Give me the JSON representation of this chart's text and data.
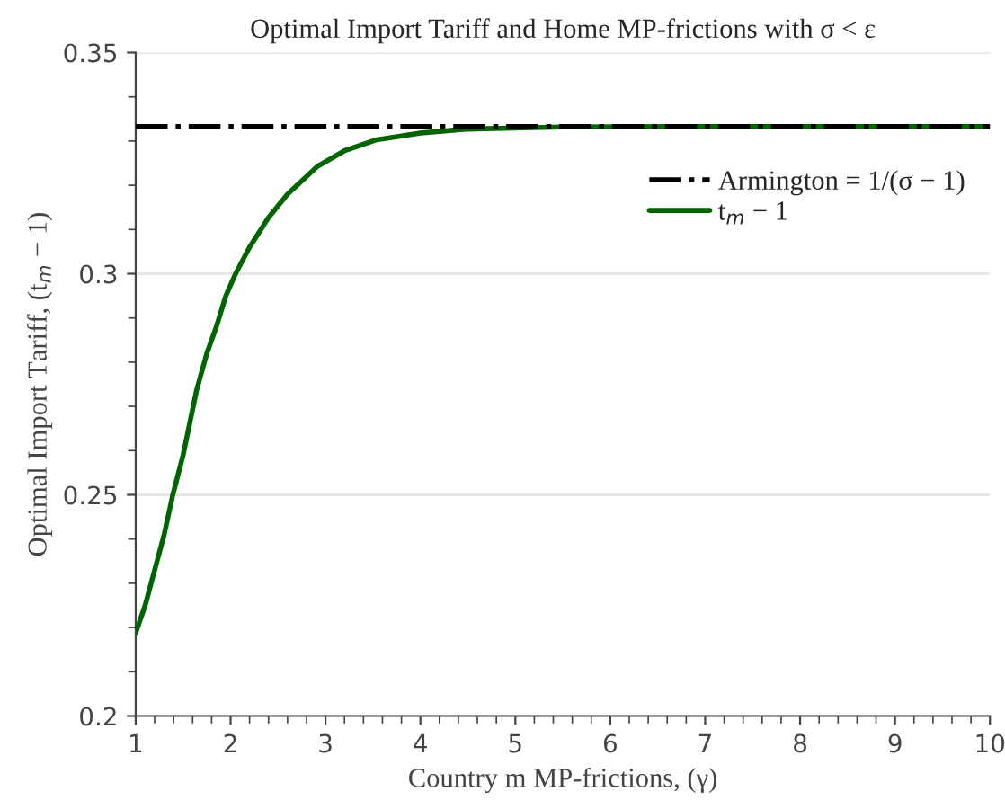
{
  "chart_data": {
    "type": "line",
    "title": "Optimal Import Tariff and Home MP-frictions with σ < ε",
    "xlabel": "Country m MP-frictions, (γ)",
    "ylabel": "Optimal Import Tariff, (t$_{m}$ − 1)",
    "series": [
      {
        "name": "Armington = 1/(σ − 1)",
        "color": "#000000",
        "line_style": "dashdot",
        "x": [
          1,
          10
        ],
        "values": [
          0.3333,
          0.3333
        ]
      },
      {
        "name": "t$_{m}$ − 1",
        "color": "#006400",
        "line_style": "solid",
        "x": [
          1,
          1.1,
          1.2,
          1.3,
          1.39,
          1.5,
          1.64,
          1.75,
          1.85,
          1.95,
          2.05,
          2.2,
          2.4,
          2.6,
          2.91,
          3.2,
          3.54,
          4.0,
          4.48,
          5.5,
          7,
          10
        ],
        "values": [
          0.2188,
          0.225,
          0.233,
          0.241,
          0.2499,
          0.259,
          0.2735,
          0.282,
          0.288,
          0.295,
          0.2999,
          0.306,
          0.3127,
          0.318,
          0.3242,
          0.3278,
          0.3303,
          0.3318,
          0.3327,
          0.3332,
          0.3333,
          0.3333
        ]
      }
    ],
    "xlim": [
      1,
      10
    ],
    "xticks": [
      1,
      2,
      3,
      4,
      5,
      6,
      7,
      8,
      9,
      10
    ],
    "ylim": [
      0.2,
      0.35
    ],
    "yticks": [
      0.2,
      0.25,
      0.3,
      0.35
    ],
    "grid": "y",
    "legend": "top right"
  }
}
